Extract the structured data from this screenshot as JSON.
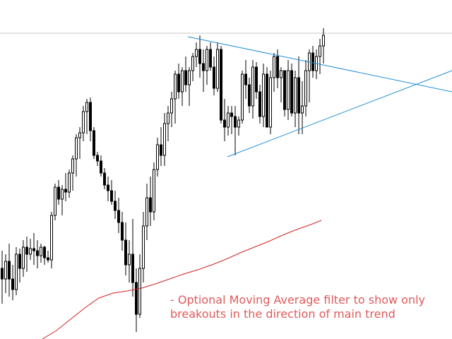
{
  "chart_data": {
    "type": "candlestick",
    "title": "",
    "xlabel": "",
    "ylabel": "",
    "ylim": [
      0,
      480
    ],
    "colors": {
      "candles": "#000000",
      "trendlines": "#1f8fd8",
      "moving_average": "#d42020",
      "top_line": "#c8c8c8",
      "annotation": "#e05a5a"
    },
    "annotations": [
      "- Optional Moving Average filter to show only",
      "breakouts in the direction of main trend"
    ],
    "candles_ohlc": [
      [
        380,
        355,
        430,
        395
      ],
      [
        395,
        360,
        415,
        370
      ],
      [
        370,
        345,
        420,
        395
      ],
      [
        395,
        375,
        425,
        410
      ],
      [
        410,
        350,
        418,
        360
      ],
      [
        360,
        352,
        400,
        380
      ],
      [
        380,
        340,
        392,
        350
      ],
      [
        350,
        335,
        385,
        360
      ],
      [
        360,
        338,
        368,
        352
      ],
      [
        352,
        330,
        375,
        355
      ],
      [
        355,
        340,
        380,
        362
      ],
      [
        362,
        345,
        372,
        350
      ],
      [
        350,
        348,
        375,
        365
      ],
      [
        365,
        355,
        372,
        368
      ],
      [
        368,
        300,
        380,
        305
      ],
      [
        305,
        260,
        312,
        265
      ],
      [
        265,
        255,
        290,
        282
      ],
      [
        282,
        262,
        305,
        268
      ],
      [
        268,
        245,
        285,
        272
      ],
      [
        272,
        240,
        280,
        245
      ],
      [
        245,
        220,
        270,
        225
      ],
      [
        225,
        190,
        250,
        195
      ],
      [
        195,
        180,
        225,
        188
      ],
      [
        188,
        150,
        200,
        158
      ],
      [
        158,
        140,
        190,
        145
      ],
      [
        145,
        138,
        200,
        185
      ],
      [
        185,
        180,
        225,
        220
      ],
      [
        220,
        215,
        235,
        228
      ],
      [
        228,
        220,
        250,
        245
      ],
      [
        245,
        238,
        268,
        262
      ],
      [
        262,
        250,
        285,
        270
      ],
      [
        270,
        255,
        290,
        285
      ],
      [
        285,
        270,
        310,
        298
      ],
      [
        298,
        280,
        330,
        315
      ],
      [
        315,
        300,
        355,
        340
      ],
      [
        340,
        315,
        390,
        375
      ],
      [
        375,
        340,
        400,
        360
      ],
      [
        360,
        310,
        420,
        400
      ],
      [
        400,
        380,
        470,
        445
      ],
      [
        445,
        360,
        450,
        380
      ],
      [
        380,
        300,
        400,
        320
      ],
      [
        320,
        260,
        340,
        280
      ],
      [
        280,
        250,
        320,
        300
      ],
      [
        300,
        230,
        312,
        240
      ],
      [
        240,
        195,
        250,
        205
      ],
      [
        205,
        180,
        235,
        220
      ],
      [
        220,
        160,
        235,
        175
      ],
      [
        175,
        150,
        200,
        160
      ],
      [
        160,
        130,
        180,
        140
      ],
      [
        140,
        100,
        175,
        105
      ],
      [
        105,
        90,
        140,
        130
      ],
      [
        130,
        95,
        150,
        100
      ],
      [
        100,
        80,
        130,
        120
      ],
      [
        120,
        95,
        150,
        100
      ],
      [
        100,
        75,
        115,
        80
      ],
      [
        80,
        60,
        95,
        70
      ],
      [
        70,
        50,
        110,
        90
      ],
      [
        90,
        70,
        130,
        100
      ],
      [
        100,
        65,
        120,
        70
      ],
      [
        70,
        60,
        100,
        95
      ],
      [
        95,
        80,
        135,
        125
      ],
      [
        125,
        60,
        130,
        70
      ],
      [
        70,
        65,
        175,
        170
      ],
      [
        170,
        140,
        200,
        180
      ],
      [
        180,
        150,
        192,
        160
      ],
      [
        160,
        150,
        190,
        165
      ],
      [
        165,
        150,
        220,
        180
      ],
      [
        180,
        165,
        192,
        170
      ],
      [
        170,
        100,
        175,
        105
      ],
      [
        105,
        85,
        140,
        120
      ],
      [
        120,
        110,
        160,
        150
      ],
      [
        150,
        85,
        168,
        95
      ],
      [
        95,
        88,
        140,
        130
      ],
      [
        130,
        120,
        175,
        165
      ],
      [
        165,
        90,
        180,
        105
      ],
      [
        105,
        95,
        180,
        180
      ],
      [
        180,
        100,
        190,
        110
      ],
      [
        110,
        75,
        130,
        80
      ],
      [
        80,
        70,
        125,
        110
      ],
      [
        110,
        95,
        145,
        100
      ],
      [
        100,
        105,
        165,
        155
      ],
      [
        155,
        85,
        170,
        100
      ],
      [
        100,
        90,
        165,
        160
      ],
      [
        160,
        100,
        180,
        110
      ],
      [
        110,
        80,
        190,
        160
      ],
      [
        160,
        115,
        190,
        150
      ],
      [
        150,
        85,
        165,
        100
      ],
      [
        100,
        70,
        145,
        75
      ],
      [
        75,
        65,
        110,
        100
      ],
      [
        100,
        70,
        112,
        80
      ],
      [
        80,
        55,
        105,
        65
      ],
      [
        65,
        40,
        90,
        50
      ]
    ],
    "trendlines": [
      {
        "name": "",
        "from": [
          266,
          52
        ],
        "to": [
          640,
          130
        ]
      },
      {
        "name": "",
        "from": [
          322,
          222
        ],
        "to": [
          640,
          100
        ]
      }
    ],
    "reference_lines": [
      {
        "y": 47,
        "from_x": 0,
        "to_x": 640
      }
    ],
    "moving_average": [
      [
        60,
        480
      ],
      [
        80,
        468
      ],
      [
        100,
        452
      ],
      [
        120,
        436
      ],
      [
        140,
        422
      ],
      [
        160,
        415
      ],
      [
        180,
        412
      ],
      [
        200,
        408
      ],
      [
        220,
        402
      ],
      [
        240,
        395
      ],
      [
        260,
        388
      ],
      [
        280,
        382
      ],
      [
        300,
        375
      ],
      [
        320,
        367
      ],
      [
        340,
        358
      ],
      [
        360,
        350
      ],
      [
        380,
        342
      ],
      [
        400,
        333
      ],
      [
        420,
        325
      ],
      [
        440,
        318
      ],
      [
        455,
        312
      ]
    ]
  }
}
